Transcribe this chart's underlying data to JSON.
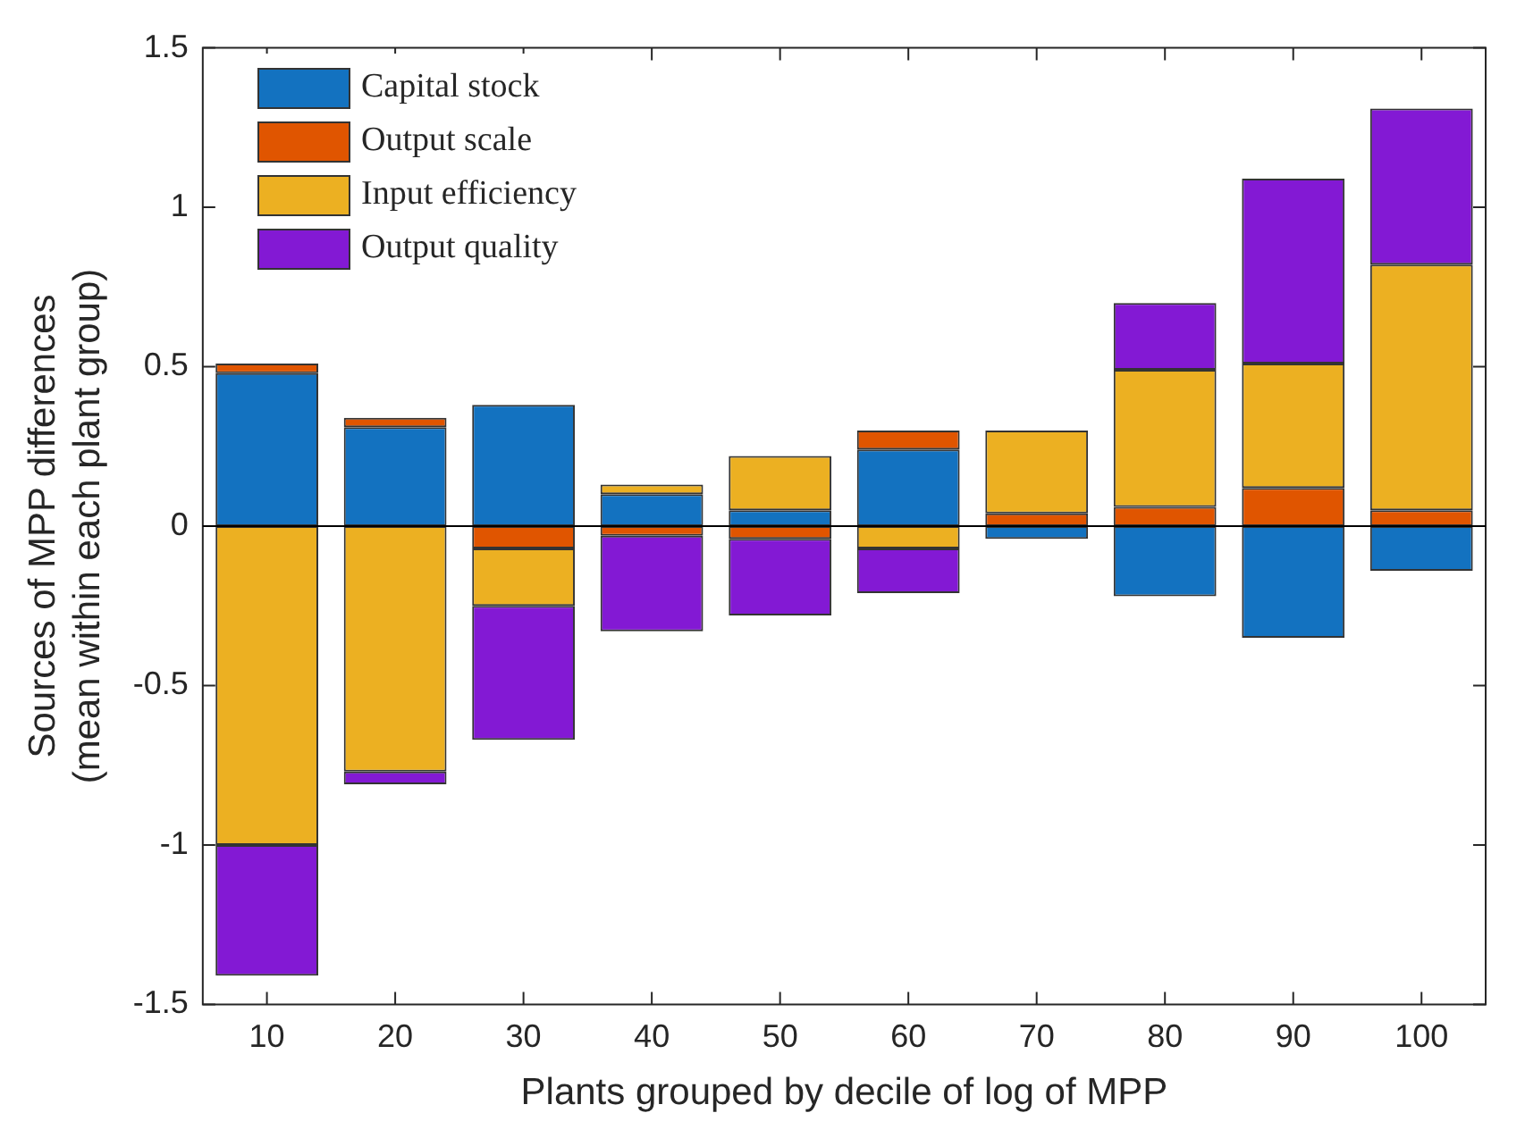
{
  "chart_data": {
    "type": "bar",
    "stacked": true,
    "xlabel": "Plants grouped by decile of log of MPP",
    "ylabel": "Sources of MPP differences\n(mean within each plant group)",
    "categories": [
      "10",
      "20",
      "30",
      "40",
      "50",
      "60",
      "70",
      "80",
      "90",
      "100"
    ],
    "series": [
      {
        "name": "Capital stock",
        "color": "#1372c0",
        "values": [
          0.48,
          0.31,
          0.38,
          0.1,
          0.05,
          0.24,
          -0.04,
          -0.22,
          -0.35,
          -0.14
        ]
      },
      {
        "name": "Output scale",
        "color": "#e05500",
        "values": [
          0.03,
          0.03,
          -0.07,
          -0.03,
          -0.04,
          0.06,
          0.04,
          0.06,
          0.12,
          0.05
        ]
      },
      {
        "name": "Input efficiency",
        "color": "#ecb022",
        "values": [
          -1.0,
          -0.77,
          -0.18,
          0.03,
          0.17,
          -0.07,
          0.26,
          0.43,
          0.39,
          0.77
        ]
      },
      {
        "name": "Output quality",
        "color": "#8319d4",
        "values": [
          -0.41,
          -0.04,
          -0.42,
          -0.3,
          -0.24,
          -0.14,
          null,
          0.21,
          0.58,
          0.49
        ]
      }
    ],
    "ylim": [
      -1.5,
      1.5
    ],
    "yticks": [
      -1.5,
      -1,
      -0.5,
      0,
      0.5,
      1,
      1.5
    ],
    "ref_lines": [
      {
        "axis": "y",
        "value": 0,
        "color": "#000000"
      }
    ],
    "grid": false,
    "legend": "top left"
  }
}
